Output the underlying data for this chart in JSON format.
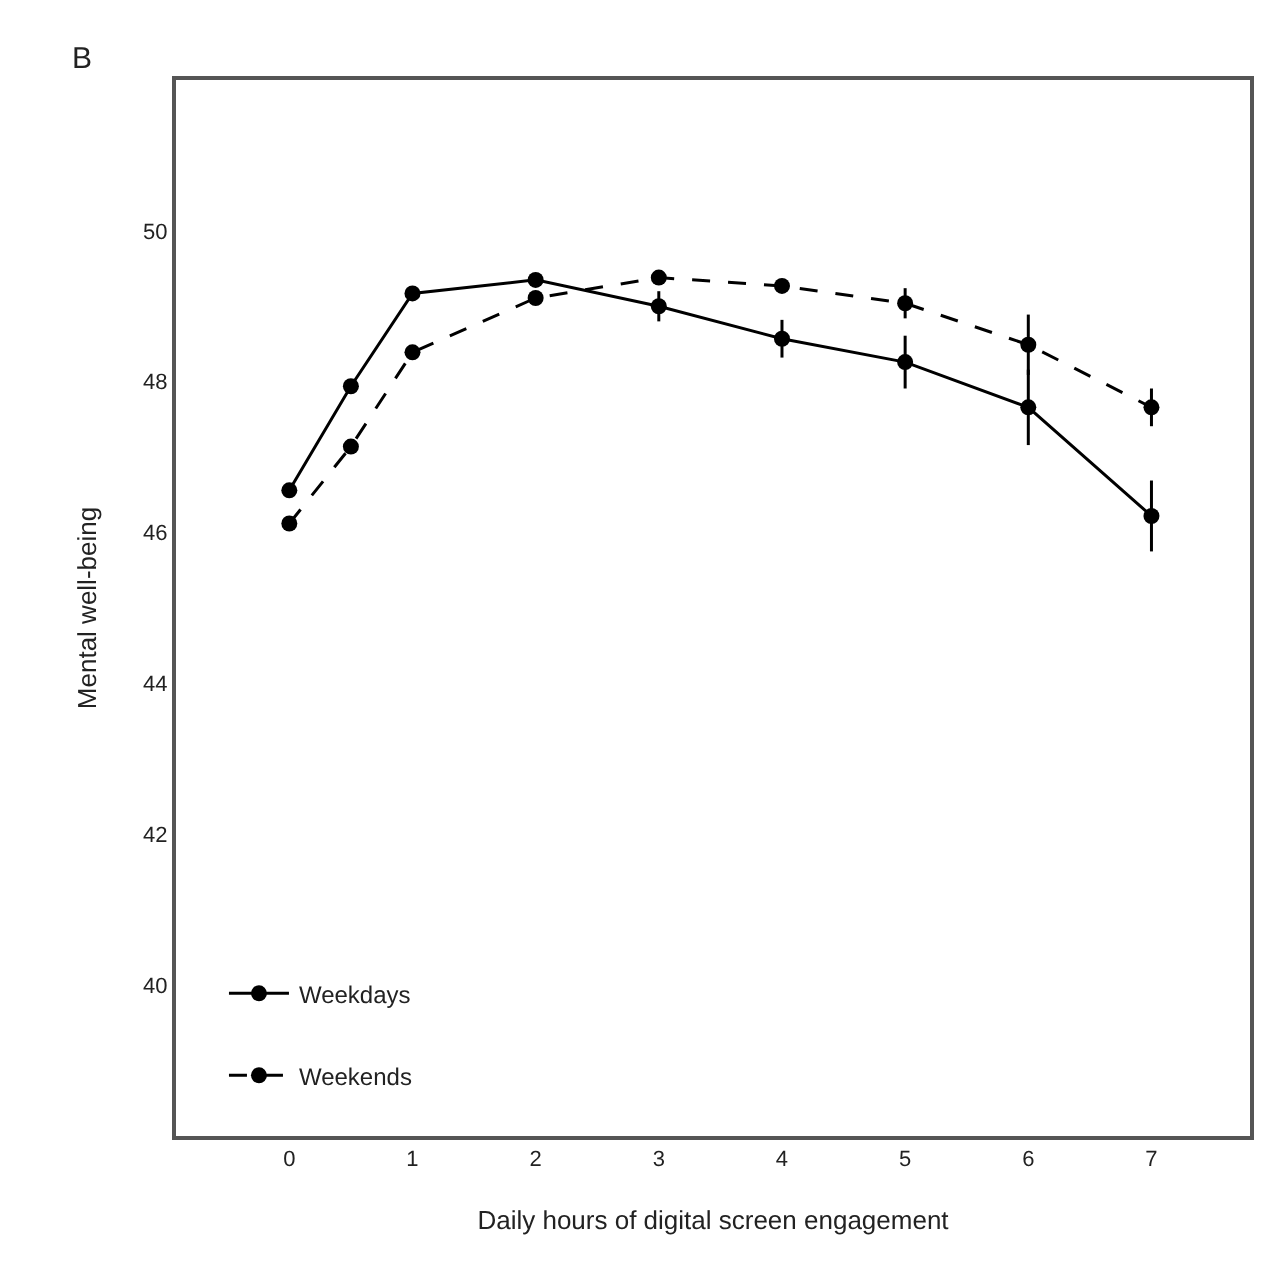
{
  "chart_data": {
    "type": "line",
    "xlabel": "Daily hours of digital screen engagement",
    "ylabel": "Mental well-being",
    "annotations": [
      "B"
    ],
    "x": [
      0,
      0.5,
      1,
      2,
      3,
      4,
      5,
      6,
      7
    ],
    "series": [
      {
        "name": "Weekdays",
        "color": "#000000",
        "line_style": "solid",
        "values": [
          46.56,
          47.94,
          49.17,
          49.35,
          49.0,
          48.57,
          48.26,
          47.66,
          46.22
        ],
        "errors": [
          null,
          null,
          null,
          null,
          0.2,
          0.25,
          0.35,
          0.5,
          0.47
        ]
      },
      {
        "name": "Weekends",
        "color": "#000000",
        "line_style": "dashed",
        "values": [
          46.12,
          47.14,
          48.39,
          49.11,
          49.38,
          49.27,
          49.04,
          48.49,
          47.66
        ],
        "errors": [
          null,
          null,
          null,
          null,
          null,
          null,
          0.2,
          0.4,
          0.25
        ]
      }
    ],
    "xlim": [
      -0.92,
      7.8
    ],
    "xticks": [
      0,
      1,
      2,
      3,
      4,
      5,
      6,
      7
    ],
    "ylim": [
      38,
      52
    ],
    "yticks": [
      40,
      42,
      44,
      46,
      48,
      50
    ],
    "legend": "bottom left",
    "marker": "circle"
  }
}
